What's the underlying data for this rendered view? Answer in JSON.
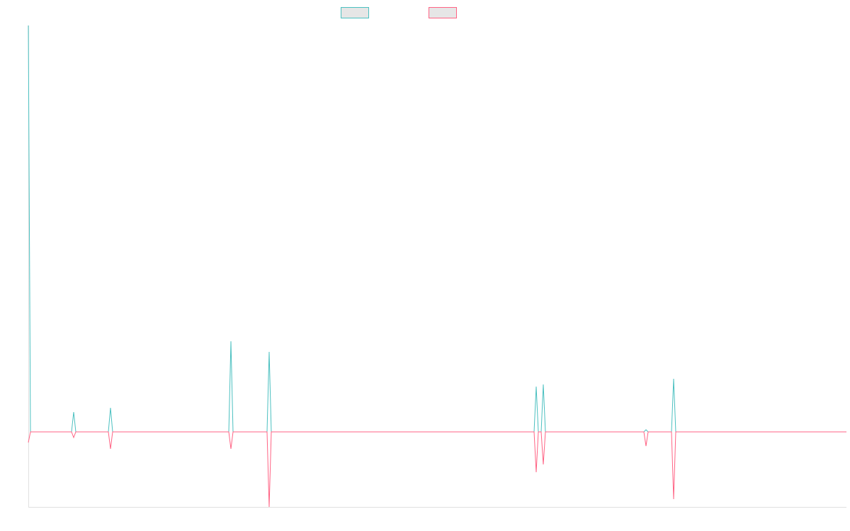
{
  "chart_data": {
    "type": "line",
    "x": [
      0,
      3,
      61,
      64,
      67,
      113,
      116,
      119,
      283,
      286,
      289,
      337,
      340,
      343,
      714,
      717,
      720,
      724,
      727,
      730,
      869,
      872,
      875,
      908,
      911,
      914,
      1155
    ],
    "series": [
      {
        "color": "#4bc0c0",
        "values": [
          574,
          0,
          0,
          28,
          0,
          0,
          34,
          0,
          0,
          128,
          0,
          0,
          113,
          0,
          0,
          64,
          0,
          0,
          67,
          0,
          0,
          3,
          0,
          0,
          75,
          0,
          0
        ]
      },
      {
        "color": "#ff6384",
        "values": [
          -15,
          0,
          0,
          -8,
          0,
          0,
          -24,
          0,
          0,
          -24,
          0,
          0,
          -106,
          0,
          0,
          -57,
          0,
          0,
          -46,
          0,
          0,
          -20,
          0,
          0,
          -95,
          0,
          0
        ]
      }
    ],
    "xlim": [
      0,
      1155
    ],
    "ylim": [
      -106,
      574
    ]
  }
}
